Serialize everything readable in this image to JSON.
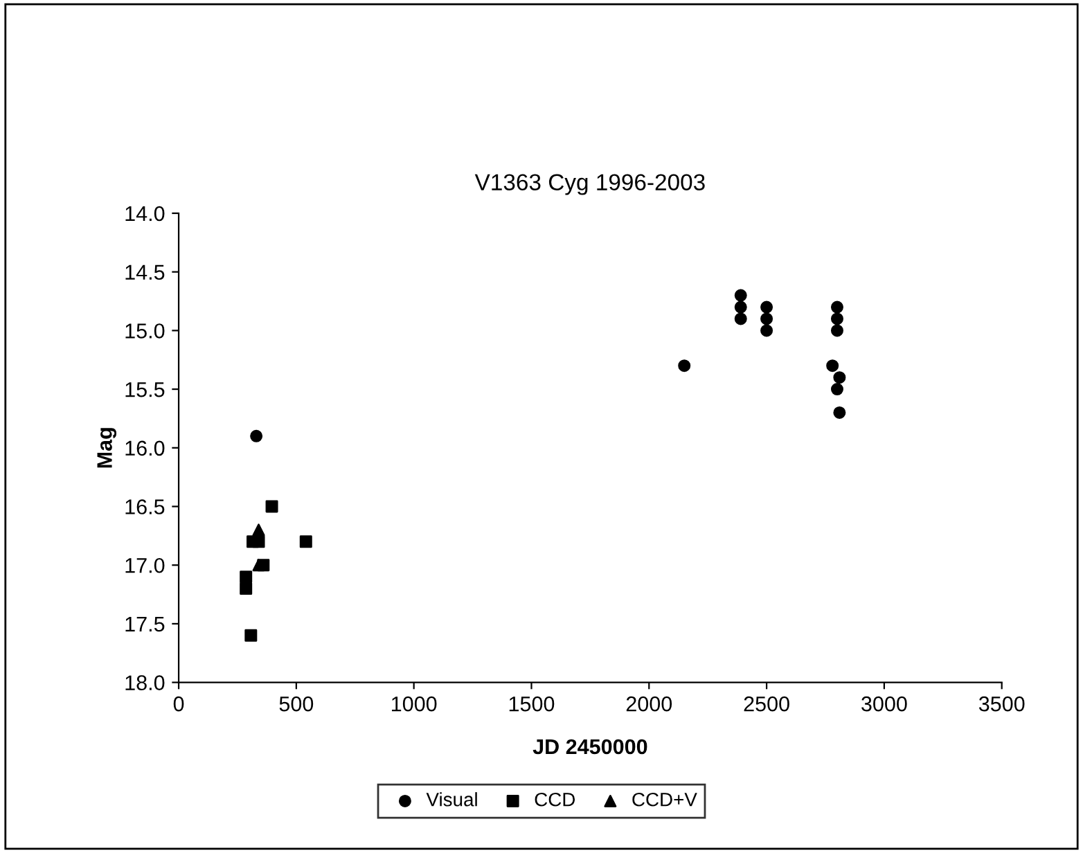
{
  "chart_data": {
    "type": "scatter",
    "title": "V1363 Cyg 1996-2003",
    "xlabel": "JD 2450000",
    "ylabel": "Mag",
    "xlim": [
      0,
      3500
    ],
    "xticks": [
      0,
      500,
      1000,
      1500,
      2000,
      2500,
      3000,
      3500
    ],
    "ylim": [
      18.0,
      14.0
    ],
    "yticks": [
      {
        "value": 14,
        "label": "14.0"
      },
      {
        "value": 14.5,
        "label": "14.5"
      },
      {
        "value": 15,
        "label": "15.0"
      },
      {
        "value": 15.5,
        "label": "15.5"
      },
      {
        "value": 16,
        "label": "16.0"
      },
      {
        "value": 16.5,
        "label": "16.5"
      },
      {
        "value": 17,
        "label": "17.0"
      },
      {
        "value": 17.5,
        "label": "17.5"
      },
      {
        "value": 18,
        "label": "18.0"
      }
    ],
    "grid": false,
    "legend": "bottom",
    "series": [
      {
        "name": "Visual",
        "color": "#000000",
        "marker": "circle",
        "x": [
          330,
          2150,
          2390,
          2390,
          2390,
          2500,
          2500,
          2500,
          2780,
          2800,
          2800,
          2800,
          2800,
          2810,
          2810
        ],
        "values": [
          15.9,
          15.3,
          14.7,
          14.8,
          14.9,
          14.8,
          14.9,
          15.0,
          15.3,
          14.8,
          14.9,
          15.0,
          15.5,
          15.4,
          15.7
        ]
      },
      {
        "name": "CCD",
        "color": "#000000",
        "marker": "square",
        "x": [
          396,
          541,
          315,
          340,
          360,
          286,
          286,
          307
        ],
        "values": [
          16.5,
          16.8,
          16.8,
          16.8,
          17.0,
          17.1,
          17.2,
          17.6
        ]
      },
      {
        "name": "CCD+V",
        "color": "#000000",
        "marker": "triangle",
        "x": [
          340,
          340
        ],
        "values": [
          16.7,
          17.0
        ]
      }
    ]
  }
}
